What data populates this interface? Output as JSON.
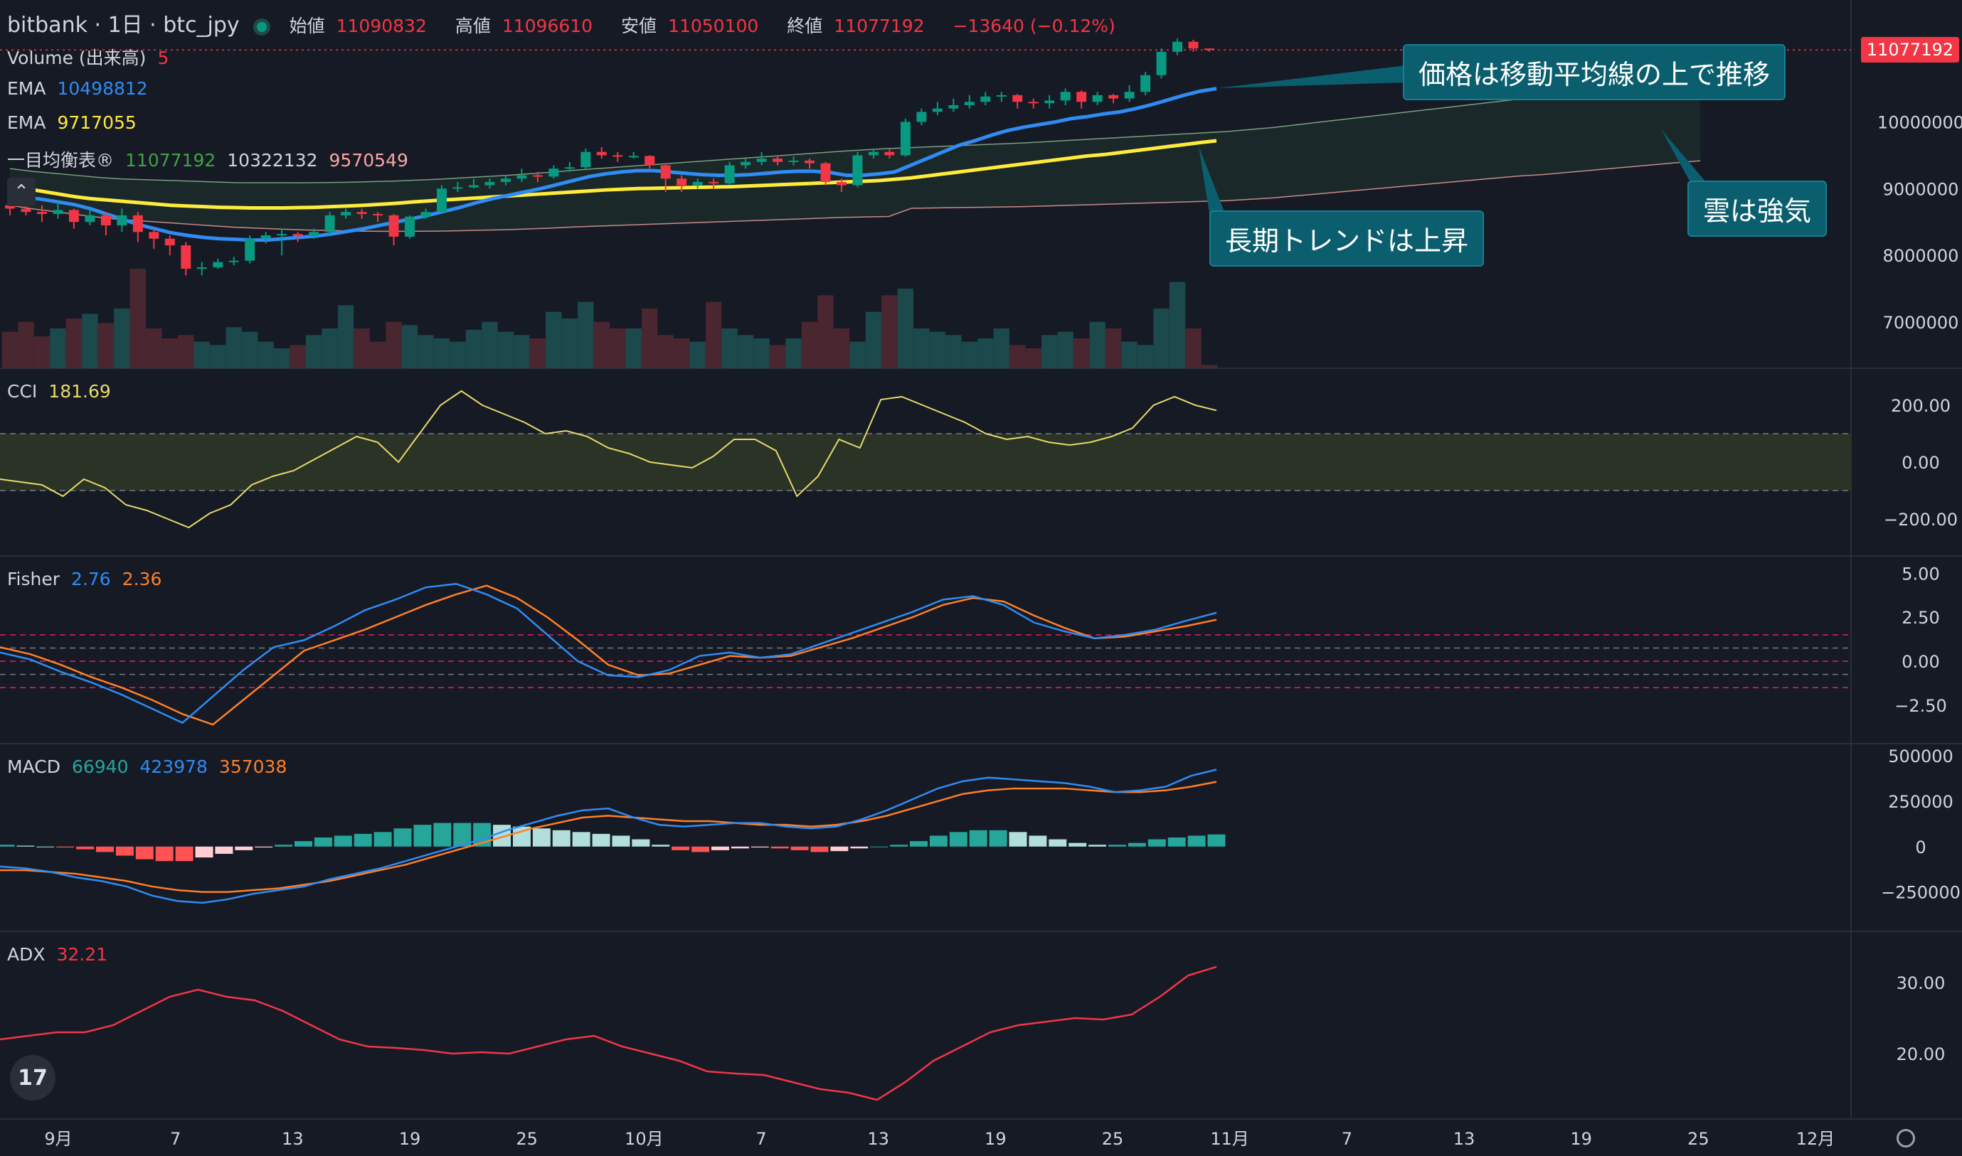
{
  "header": {
    "symbol": "bitbank · 1日 · btc_jpy",
    "open_label": "始値",
    "open_value": "11090832",
    "high_label": "高値",
    "high_value": "11096610",
    "low_label": "安値",
    "low_value": "11050100",
    "close_label": "終値",
    "close_value": "11077192",
    "change": "−13640 (−0.12%)"
  },
  "legends": {
    "volume": {
      "label": "Volume (出来高)",
      "value": "5"
    },
    "ema1": {
      "label": "EMA",
      "value": "10498812",
      "color": "#2f8cf4"
    },
    "ema2": {
      "label": "EMA",
      "value": "9717055",
      "color": "#ffeb3b"
    },
    "ichimoku": {
      "label": "一目均衡表®",
      "v1": "11077192",
      "v2": "10322132",
      "v3": "9570549"
    },
    "cci": {
      "label": "CCI",
      "value": "181.69"
    },
    "fisher": {
      "label": "Fisher",
      "v1": "2.76",
      "v2": "2.36"
    },
    "macd": {
      "label": "MACD",
      "v1": "66940",
      "v2": "423978",
      "v3": "357038"
    },
    "adx": {
      "label": "ADX",
      "value": "32.21"
    }
  },
  "annotations": {
    "a1": "価格は移動平均線の上で推移",
    "a2": "長期トレンドは上昇",
    "a3": "雲は強気"
  },
  "price_tag": "11077192",
  "icons": {
    "logo": "tradingview-logo-icon",
    "settings": "settings-gear-icon",
    "collapse": "chevron-up-icon"
  },
  "chart_data": {
    "type": "candlestick",
    "title": "",
    "x_ticks": [
      "9月",
      "7",
      "13",
      "19",
      "25",
      "10月",
      "7",
      "13",
      "19",
      "25",
      "11月",
      "7",
      "13",
      "19",
      "25",
      "12月"
    ],
    "candles": [
      [
        8750000,
        8700000,
        8850000,
        8600000
      ],
      [
        8700000,
        8650000,
        8900000,
        8600000
      ],
      [
        8650000,
        8620000,
        8750000,
        8500000
      ],
      [
        8620000,
        8680000,
        8800000,
        8550000
      ],
      [
        8680000,
        8500000,
        8700000,
        8400000
      ],
      [
        8500000,
        8600000,
        8700000,
        8450000
      ],
      [
        8600000,
        8450000,
        8650000,
        8300000
      ],
      [
        8450000,
        8600000,
        8700000,
        8350000
      ],
      [
        8600000,
        8350000,
        8650000,
        8200000
      ],
      [
        8350000,
        8250000,
        8400000,
        8100000
      ],
      [
        8250000,
        8150000,
        8300000,
        8000000
      ],
      [
        8150000,
        7800000,
        8200000,
        7700000
      ],
      [
        7800000,
        7820000,
        7900000,
        7700000
      ],
      [
        7820000,
        7900000,
        7950000,
        7800000
      ],
      [
        7900000,
        7920000,
        7980000,
        7850000
      ],
      [
        7920000,
        8250000,
        8300000,
        7880000
      ],
      [
        8250000,
        8300000,
        8350000,
        8180000
      ],
      [
        8300000,
        8320000,
        8400000,
        8000000
      ],
      [
        8320000,
        8290000,
        8350000,
        8200000
      ],
      [
        8290000,
        8350000,
        8400000,
        8250000
      ],
      [
        8350000,
        8600000,
        8650000,
        8300000
      ],
      [
        8600000,
        8650000,
        8700000,
        8550000
      ],
      [
        8650000,
        8620000,
        8700000,
        8550000
      ],
      [
        8620000,
        8600000,
        8650000,
        8500000
      ],
      [
        8600000,
        8280000,
        8620000,
        8150000
      ],
      [
        8280000,
        8580000,
        8600000,
        8250000
      ],
      [
        8580000,
        8650000,
        8700000,
        8550000
      ],
      [
        8650000,
        9000000,
        9050000,
        8620000
      ],
      [
        9000000,
        9020000,
        9100000,
        8950000
      ],
      [
        9020000,
        9050000,
        9150000,
        9000000
      ],
      [
        9050000,
        9100000,
        9150000,
        9000000
      ],
      [
        9100000,
        9150000,
        9200000,
        9050000
      ],
      [
        9150000,
        9200000,
        9300000,
        9100000
      ],
      [
        9200000,
        9180000,
        9250000,
        9100000
      ],
      [
        9180000,
        9300000,
        9350000,
        9150000
      ],
      [
        9300000,
        9320000,
        9400000,
        9250000
      ],
      [
        9320000,
        9550000,
        9600000,
        9300000
      ],
      [
        9550000,
        9500000,
        9620000,
        9450000
      ],
      [
        9500000,
        9480000,
        9550000,
        9400000
      ],
      [
        9480000,
        9490000,
        9550000,
        9450000
      ],
      [
        9490000,
        9350000,
        9500000,
        9300000
      ],
      [
        9350000,
        9150000,
        9380000,
        8950000
      ],
      [
        9150000,
        9050000,
        9200000,
        8950000
      ],
      [
        9050000,
        9100000,
        9150000,
        9000000
      ],
      [
        9100000,
        9080000,
        9150000,
        9000000
      ],
      [
        9080000,
        9350000,
        9400000,
        9050000
      ],
      [
        9350000,
        9400000,
        9450000,
        9300000
      ],
      [
        9400000,
        9450000,
        9550000,
        9350000
      ],
      [
        9450000,
        9400000,
        9500000,
        9350000
      ],
      [
        9400000,
        9420000,
        9480000,
        9350000
      ],
      [
        9420000,
        9380000,
        9450000,
        9300000
      ],
      [
        9380000,
        9100000,
        9400000,
        9050000
      ],
      [
        9100000,
        9050000,
        9150000,
        8950000
      ],
      [
        9050000,
        9500000,
        9550000,
        9020000
      ],
      [
        9500000,
        9550000,
        9600000,
        9450000
      ],
      [
        9550000,
        9500000,
        9600000,
        9450000
      ],
      [
        9500000,
        10000000,
        10050000,
        9480000
      ],
      [
        10000000,
        10150000,
        10200000,
        9950000
      ],
      [
        10150000,
        10200000,
        10300000,
        10100000
      ],
      [
        10200000,
        10250000,
        10350000,
        10150000
      ],
      [
        10250000,
        10300000,
        10400000,
        10200000
      ],
      [
        10300000,
        10380000,
        10450000,
        10250000
      ],
      [
        10380000,
        10400000,
        10450000,
        10300000
      ],
      [
        10400000,
        10300000,
        10420000,
        10200000
      ],
      [
        10300000,
        10280000,
        10350000,
        10200000
      ],
      [
        10280000,
        10320000,
        10400000,
        10200000
      ],
      [
        10320000,
        10450000,
        10500000,
        10250000
      ],
      [
        10450000,
        10300000,
        10470000,
        10200000
      ],
      [
        10300000,
        10400000,
        10450000,
        10250000
      ],
      [
        10400000,
        10350000,
        10420000,
        10280000
      ],
      [
        10350000,
        10450000,
        10550000,
        10300000
      ],
      [
        10450000,
        10700000,
        10750000,
        10400000
      ],
      [
        10700000,
        11050000,
        11100000,
        10650000
      ],
      [
        11050000,
        11200000,
        11250000,
        11000000
      ],
      [
        11200000,
        11100000,
        11230000,
        11050000
      ],
      [
        11100000,
        11077192,
        11096610,
        11050100
      ]
    ],
    "price_axis": {
      "ticks": [
        "10000000",
        "9000000",
        "8000000",
        "7000000"
      ],
      "ylim": [
        6500000,
        11400000
      ]
    },
    "volume": [
      55,
      70,
      48,
      60,
      75,
      82,
      68,
      90,
      150,
      60,
      45,
      50,
      40,
      35,
      62,
      55,
      40,
      30,
      35,
      50,
      60,
      95,
      60,
      40,
      70,
      65,
      50,
      45,
      40,
      58,
      70,
      55,
      50,
      45,
      85,
      75,
      100,
      70,
      60,
      60,
      90,
      50,
      45,
      40,
      100,
      60,
      50,
      45,
      35,
      45,
      70,
      110,
      60,
      40,
      85,
      110,
      120,
      60,
      55,
      50,
      40,
      45,
      60,
      35,
      30,
      50,
      55,
      45,
      70,
      60,
      40,
      35,
      90,
      130,
      60,
      5
    ],
    "ema_fast": [
      8900000,
      8870000,
      8840000,
      8800000,
      8760000,
      8700000,
      8620000,
      8540000,
      8460000,
      8400000,
      8340000,
      8300000,
      8270000,
      8250000,
      8240000,
      8230000,
      8230000,
      8250000,
      8270000,
      8290000,
      8320000,
      8360000,
      8400000,
      8450000,
      8500000,
      8550000,
      8600000,
      8660000,
      8720000,
      8790000,
      8850000,
      8900000,
      8950000,
      9000000,
      9060000,
      9120000,
      9180000,
      9220000,
      9250000,
      9270000,
      9270000,
      9250000,
      9230000,
      9210000,
      9200000,
      9200000,
      9210000,
      9230000,
      9250000,
      9260000,
      9260000,
      9240000,
      9200000,
      9200000,
      9220000,
      9250000,
      9350000,
      9450000,
      9550000,
      9650000,
      9720000,
      9800000,
      9870000,
      9920000,
      9960000,
      10000000,
      10050000,
      10080000,
      10120000,
      10150000,
      10200000,
      10260000,
      10330000,
      10400000,
      10460000,
      10498812
    ],
    "ema_slow": [
      9050000,
      9000000,
      8960000,
      8920000,
      8880000,
      8850000,
      8830000,
      8810000,
      8790000,
      8770000,
      8750000,
      8740000,
      8730000,
      8720000,
      8715000,
      8710000,
      8710000,
      8710000,
      8715000,
      8720000,
      8730000,
      8740000,
      8750000,
      8765000,
      8780000,
      8800000,
      8815000,
      8830000,
      8845000,
      8860000,
      8875000,
      8890000,
      8905000,
      8920000,
      8935000,
      8950000,
      8965000,
      8980000,
      8990000,
      9000000,
      9005000,
      9010000,
      9015000,
      9020000,
      9025000,
      9030000,
      9040000,
      9050000,
      9060000,
      9070000,
      9080000,
      9090000,
      9100000,
      9110000,
      9120000,
      9140000,
      9160000,
      9190000,
      9220000,
      9250000,
      9280000,
      9310000,
      9340000,
      9370000,
      9400000,
      9430000,
      9460000,
      9490000,
      9510000,
      9540000,
      9570000,
      9600000,
      9630000,
      9660000,
      9690000,
      9717055
    ],
    "cci": {
      "ticks": [
        "200.00",
        "0.00",
        "−200.00"
      ],
      "ylim": [
        -300,
        300
      ],
      "band": [
        -100,
        100
      ],
      "values": [
        -60,
        -70,
        -80,
        -120,
        -60,
        -90,
        -150,
        -170,
        -200,
        -230,
        -180,
        -150,
        -80,
        -50,
        -30,
        10,
        50,
        90,
        70,
        0,
        100,
        200,
        250,
        200,
        170,
        140,
        100,
        110,
        90,
        50,
        30,
        0,
        -10,
        -20,
        20,
        80,
        80,
        40,
        -120,
        -50,
        80,
        50,
        220,
        230,
        200,
        170,
        140,
        100,
        80,
        90,
        70,
        60,
        70,
        90,
        120,
        200,
        230,
        200,
        181.69
      ]
    },
    "fisher": {
      "ticks": [
        "5.00",
        "2.50",
        "0.00",
        "−2.50"
      ],
      "ylim": [
        -4.2,
        5.5
      ],
      "levels": [
        1.5,
        0.75,
        0,
        -0.75,
        -1.5
      ],
      "fast": [
        0.5,
        0.1,
        -0.6,
        -1.2,
        -1.9,
        -2.7,
        -3.5,
        -2.0,
        -0.5,
        0.8,
        1.2,
        2.0,
        2.9,
        3.5,
        4.2,
        4.4,
        3.8,
        3.0,
        1.5,
        0.0,
        -0.8,
        -0.9,
        -0.5,
        0.3,
        0.5,
        0.2,
        0.4,
        1.0,
        1.6,
        2.2,
        2.8,
        3.5,
        3.7,
        3.2,
        2.2,
        1.7,
        1.3,
        1.5,
        1.8,
        2.3,
        2.76
      ],
      "slow": [
        0.8,
        0.4,
        -0.2,
        -0.9,
        -1.5,
        -2.2,
        -3.0,
        -3.6,
        -2.2,
        -0.8,
        0.6,
        1.2,
        1.8,
        2.5,
        3.2,
        3.8,
        4.3,
        3.6,
        2.5,
        1.2,
        -0.2,
        -0.8,
        -0.7,
        -0.2,
        0.3,
        0.2,
        0.3,
        0.8,
        1.3,
        1.9,
        2.5,
        3.2,
        3.6,
        3.4,
        2.6,
        1.9,
        1.3,
        1.4,
        1.7,
        2.0,
        2.36
      ]
    },
    "macd": {
      "ticks": [
        "500000",
        "250000",
        "0",
        "−250000"
      ],
      "ylim": [
        -420000,
        520000
      ],
      "hist": [
        10000,
        5000,
        0,
        -5000,
        -15000,
        -30000,
        -50000,
        -70000,
        -80000,
        -80000,
        -60000,
        -40000,
        -20000,
        -5000,
        10000,
        30000,
        50000,
        60000,
        70000,
        80000,
        100000,
        120000,
        130000,
        130000,
        130000,
        120000,
        110000,
        100000,
        90000,
        80000,
        70000,
        60000,
        40000,
        10000,
        -20000,
        -30000,
        -20000,
        -10000,
        -5000,
        -10000,
        -20000,
        -30000,
        -25000,
        -10000,
        0,
        10000,
        30000,
        60000,
        80000,
        90000,
        90000,
        80000,
        60000,
        40000,
        20000,
        10000,
        10000,
        20000,
        40000,
        50000,
        60000,
        66940
      ],
      "macd_line": [
        -110000,
        -120000,
        -140000,
        -170000,
        -190000,
        -220000,
        -270000,
        -300000,
        -310000,
        -290000,
        -260000,
        -240000,
        -220000,
        -180000,
        -150000,
        -120000,
        -80000,
        -40000,
        0,
        40000,
        90000,
        130000,
        170000,
        200000,
        210000,
        160000,
        120000,
        110000,
        120000,
        130000,
        130000,
        110000,
        100000,
        110000,
        150000,
        200000,
        260000,
        320000,
        360000,
        380000,
        370000,
        360000,
        350000,
        330000,
        300000,
        310000,
        330000,
        390000,
        423978
      ],
      "signal_line": [
        -130000,
        -130000,
        -140000,
        -150000,
        -170000,
        -190000,
        -220000,
        -240000,
        -250000,
        -250000,
        -240000,
        -230000,
        -210000,
        -190000,
        -160000,
        -130000,
        -100000,
        -60000,
        -20000,
        20000,
        60000,
        100000,
        130000,
        160000,
        170000,
        160000,
        150000,
        140000,
        140000,
        130000,
        120000,
        120000,
        110000,
        120000,
        140000,
        170000,
        210000,
        250000,
        290000,
        310000,
        320000,
        320000,
        320000,
        310000,
        300000,
        300000,
        310000,
        330000,
        357038
      ]
    },
    "adx": {
      "ticks": [
        "30.00",
        "20.00"
      ],
      "ylim": [
        12,
        36
      ],
      "values": [
        22,
        22.5,
        23,
        23,
        24,
        26,
        28,
        29,
        28,
        27.5,
        26,
        24,
        22,
        21,
        20.8,
        20.5,
        20,
        20.2,
        20,
        21,
        22,
        22.5,
        21,
        20,
        19,
        17.5,
        17.2,
        17,
        16,
        15,
        14.5,
        13.5,
        16,
        19,
        21,
        23,
        24,
        24.5,
        25,
        24.8,
        25.5,
        28,
        31,
        32.21
      ]
    }
  }
}
